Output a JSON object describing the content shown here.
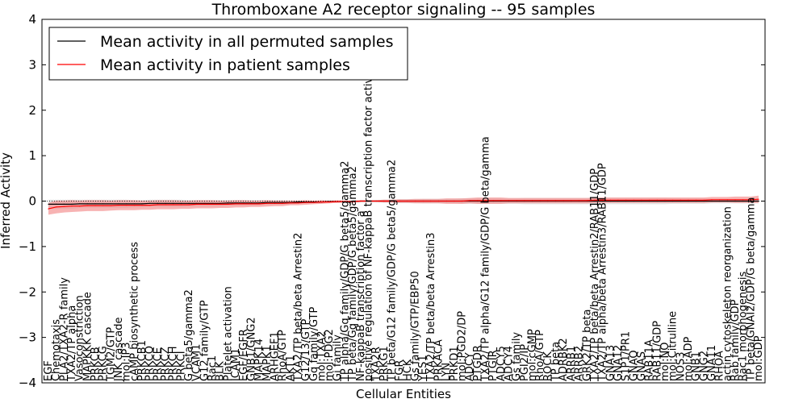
{
  "chart_data": {
    "type": "line",
    "title": "Thromboxane A2 receptor signaling -- 95 samples",
    "xlabel": "Cellular Entities",
    "ylabel": "Inferred Activity",
    "ylim": [
      -4,
      4
    ],
    "yticks": [
      -4,
      -3,
      -2,
      -1,
      0,
      1,
      2,
      3,
      4
    ],
    "ytick_labels": [
      "−4",
      "−3",
      "−2",
      "−1",
      "0",
      "1",
      "2",
      "3",
      "4"
    ],
    "grid": false,
    "legend_position": "top-left",
    "colors": {
      "permuted": "#000000",
      "patient": "#ff0000",
      "patient_band": "#f28b8b",
      "permuted_band": "#cfcfcf"
    },
    "entities": [
      "EGF",
      "Chemotaxis",
      "PLA2/TXA2-R family",
      "TXA2/TP alpha",
      "Vasoconstriction",
      "MAPKKK cascade",
      "PRKCB",
      "PRKCG",
      "TGM2/GTP",
      "JNK cascade",
      "mol:IP3",
      "cAMP biosynthetic process",
      "PRKCB1",
      "PRKCQ",
      "PRKCE",
      "PRKCZ",
      "PRKCH",
      "PRKCI",
      "G beta5/gamma2",
      "VCAM1",
      "G12 family/GTP",
      "Rac1",
      "BLK",
      "Platelet activation",
      "ICAM1",
      "EGF/EGFR",
      "GNB1/GNG2",
      "MAPK14",
      "MAPK1",
      "ARHGEF1",
      "RhoA/GTP",
      "AKT1",
      "TXA2/TP beta/beta Arrestin2",
      "G12/13/GTP",
      "Gq family/GTP",
      "mol:TXA2",
      "mol:PDG2",
      "Gi family",
      "TP alpha/Gq family/GDP/G beta5/gamma2",
      "TP beta/Gq family/GDP/G beta5/gamma2",
      "NF-kappaB transcription factor a",
      "positive regulation of NF-kappaB transcription factor activity",
      "TXA2R",
      "PRKG1",
      "TP beta/G12 family/GDP/G beta5/gamma2",
      "FGR",
      "HCK",
      "Gs family/GTP/EBP50",
      "YES1",
      "TXA2/TP beta/beta Arrestin3",
      "PRKACA",
      "LYN",
      "PRKD1",
      "mol:PGD2/DP",
      "ADCY",
      "PTGDR",
      "TXA2/TP alpha/G12 family/GDP/G beta/gamma",
      "PTGIR",
      "ADCY5",
      "ADCY4",
      "Gs family",
      "PGI2/IP",
      "mol:cGMP",
      "RhoA/GTP",
      "ROCK",
      "TP beta",
      "ADRBK2",
      "ARRB1",
      "ARRB2",
      "GRK2/TP beta",
      "TXA2/TP beta/beta Arrestin2/RAB11/GDP",
      "TXA2/TP alpha/beta Arrestin3/RAB11/GDP",
      "GNA13",
      "GNA12",
      "S1P1/PR1",
      "GNAQ",
      "GNAS",
      "RAB11A",
      "RAB11/GDP",
      "mol:NO",
      "mol:Citrulline",
      "NOS3",
      "mol:ADP",
      "GNB1",
      "GNG2",
      "GNA11",
      "RHOA",
      "actin cytoskeleton reorganization",
      "Rab family/GDP",
      "Rac1 morphogenesis",
      "TP beta/GNAI2/GDP/G beta/gamma",
      "mol:GDP"
    ],
    "series": [
      {
        "name": "Mean activity in all permuted samples",
        "mean": [
          -0.07,
          -0.07,
          -0.07,
          -0.07,
          -0.06,
          -0.06,
          -0.06,
          -0.06,
          -0.06,
          -0.06,
          -0.06,
          -0.06,
          -0.06,
          -0.05,
          -0.05,
          -0.05,
          -0.05,
          -0.05,
          -0.05,
          -0.05,
          -0.05,
          -0.05,
          -0.05,
          -0.04,
          -0.04,
          -0.04,
          -0.04,
          -0.04,
          -0.03,
          -0.03,
          -0.03,
          -0.03,
          -0.02,
          -0.02,
          -0.02,
          -0.02,
          -0.01,
          -0.01,
          -0.01,
          -0.01,
          0.0,
          0.0,
          0.0,
          0.0,
          0.0,
          0.0,
          0.0,
          0.0,
          0.0,
          0.0,
          0.0,
          0.0,
          0.0,
          0.0,
          0.0,
          0.0,
          0.0,
          0.0,
          0.0,
          0.0,
          0.0,
          0.0,
          0.0,
          0.0,
          0.0,
          0.0,
          0.0,
          0.0,
          0.0,
          0.0,
          0.0,
          0.0,
          0.0,
          0.0,
          0.0,
          0.0,
          0.0,
          0.0,
          0.0,
          0.0,
          0.0,
          0.0,
          0.0,
          0.0,
          0.0,
          0.0,
          0.0,
          0.0,
          0.0,
          0.0,
          0.0,
          0.0
        ],
        "spread": [
          0.1,
          0.1,
          0.1,
          0.1,
          0.09,
          0.09,
          0.09,
          0.09,
          0.09,
          0.09,
          0.09,
          0.08,
          0.08,
          0.08,
          0.08,
          0.08,
          0.08,
          0.08,
          0.07,
          0.07,
          0.07,
          0.07,
          0.07,
          0.06,
          0.06,
          0.06,
          0.06,
          0.06,
          0.05,
          0.05,
          0.05,
          0.04,
          0.04,
          0.04,
          0.03,
          0.03,
          0.02,
          0.02,
          0.02,
          0.02,
          0.02,
          0.02,
          0.02,
          0.03,
          0.03,
          0.04,
          0.04,
          0.04,
          0.05,
          0.05,
          0.05,
          0.05,
          0.05,
          0.06,
          0.06,
          0.06,
          0.06,
          0.06,
          0.06,
          0.06,
          0.06,
          0.07,
          0.07,
          0.07,
          0.07,
          0.07,
          0.07,
          0.07,
          0.07,
          0.07,
          0.07,
          0.07,
          0.07,
          0.07,
          0.07,
          0.07,
          0.07,
          0.07,
          0.07,
          0.07,
          0.06,
          0.06,
          0.06,
          0.06,
          0.06,
          0.05,
          0.05,
          0.05,
          0.05,
          0.05,
          0.05,
          0.05
        ]
      },
      {
        "name": "Mean activity in patient samples",
        "mean": [
          -0.17,
          -0.13,
          -0.12,
          -0.11,
          -0.11,
          -0.1,
          -0.1,
          -0.1,
          -0.1,
          -0.09,
          -0.09,
          -0.09,
          -0.09,
          -0.09,
          -0.08,
          -0.08,
          -0.08,
          -0.08,
          -0.08,
          -0.07,
          -0.07,
          -0.07,
          -0.07,
          -0.07,
          -0.06,
          -0.06,
          -0.06,
          -0.06,
          -0.05,
          -0.05,
          -0.05,
          -0.04,
          -0.04,
          -0.03,
          -0.03,
          -0.02,
          -0.02,
          -0.01,
          -0.01,
          -0.01,
          0.0,
          0.0,
          0.0,
          0.0,
          0.0,
          0.0,
          0.0,
          0.0,
          0.0,
          0.0,
          0.0,
          0.0,
          0.0,
          0.0,
          0.01,
          0.01,
          0.01,
          0.01,
          0.01,
          0.01,
          0.01,
          0.01,
          0.01,
          0.01,
          0.01,
          0.01,
          0.01,
          0.01,
          0.01,
          0.01,
          0.02,
          0.02,
          0.02,
          0.02,
          0.02,
          0.02,
          0.02,
          0.02,
          0.02,
          0.02,
          0.02,
          0.02,
          0.02,
          0.02,
          0.02,
          0.03,
          0.03,
          0.03,
          0.03,
          0.03,
          0.03,
          0.04
        ],
        "spread": [
          0.13,
          0.14,
          0.13,
          0.13,
          0.12,
          0.12,
          0.12,
          0.12,
          0.11,
          0.11,
          0.11,
          0.11,
          0.1,
          0.1,
          0.1,
          0.1,
          0.1,
          0.09,
          0.09,
          0.09,
          0.09,
          0.09,
          0.08,
          0.08,
          0.08,
          0.08,
          0.07,
          0.07,
          0.07,
          0.06,
          0.06,
          0.05,
          0.05,
          0.05,
          0.04,
          0.04,
          0.03,
          0.03,
          0.02,
          0.02,
          0.02,
          0.02,
          0.02,
          0.03,
          0.03,
          0.04,
          0.04,
          0.05,
          0.05,
          0.05,
          0.05,
          0.06,
          0.06,
          0.06,
          0.06,
          0.07,
          0.07,
          0.07,
          0.07,
          0.06,
          0.06,
          0.06,
          0.06,
          0.06,
          0.06,
          0.06,
          0.06,
          0.06,
          0.06,
          0.06,
          0.06,
          0.06,
          0.06,
          0.06,
          0.06,
          0.06,
          0.06,
          0.06,
          0.06,
          0.06,
          0.06,
          0.06,
          0.06,
          0.06,
          0.06,
          0.06,
          0.06,
          0.06,
          0.07,
          0.07,
          0.07,
          0.08
        ]
      }
    ]
  }
}
